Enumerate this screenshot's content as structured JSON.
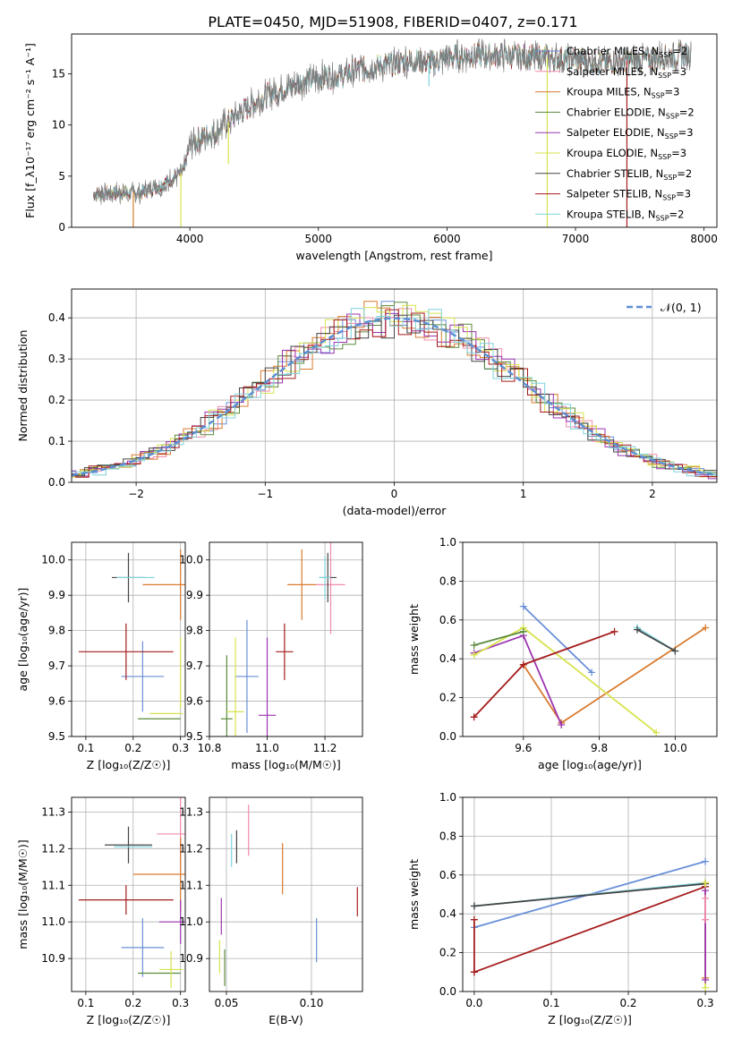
{
  "figure_title": "PLATE=0450, MJD=51908, FIBERID=0407, z=0.171",
  "models": [
    {
      "name": "Chabrier MILES",
      "nssp": "2",
      "color": "#6a8fd8"
    },
    {
      "name": "Salpeter MILES",
      "nssp": "3",
      "color": "#f08cad"
    },
    {
      "name": "Kroupa MILES",
      "nssp": "3",
      "color": "#d97b2f"
    },
    {
      "name": "Chabrier ELODIE",
      "nssp": "2",
      "color": "#5c8a3c"
    },
    {
      "name": "Salpeter ELODIE",
      "nssp": "3",
      "color": "#9b34b0"
    },
    {
      "name": "Kroupa ELODIE",
      "nssp": "3",
      "color": "#d7e34e"
    },
    {
      "name": "Chabrier STELIB",
      "nssp": "2",
      "color": "#444444"
    },
    {
      "name": "Salpeter STELIB",
      "nssp": "3",
      "color": "#a51c1c"
    },
    {
      "name": "Kroupa STELIB",
      "nssp": "2",
      "color": "#7fd3dc"
    }
  ],
  "chart_data": [
    {
      "id": "spectrum",
      "type": "line",
      "xlabel": "wavelength [Angstrom, rest frame]",
      "ylabel": "Flux [f_λ10⁻¹⁷ erg cm⁻² s⁻¹ A⁻¹]",
      "xlim": [
        3080,
        8100
      ],
      "ylim": [
        0,
        18.9
      ],
      "xticks": [
        4000,
        5000,
        6000,
        7000,
        8000
      ],
      "yticks": [
        0,
        5,
        10,
        15
      ],
      "grid": false,
      "legend": "right",
      "continuum": {
        "x": [
          3250,
          3400,
          3600,
          3800,
          3950,
          4000,
          4200,
          4400,
          4600,
          4800,
          5000,
          5200,
          5300,
          5500,
          5700,
          5900,
          6000,
          6200,
          6400,
          6600,
          6800,
          7000,
          7200,
          7400,
          7600,
          7800,
          7900
        ],
        "y": [
          3.2,
          3.4,
          3.3,
          4.3,
          5.4,
          8.2,
          9.4,
          11.3,
          12.9,
          13.9,
          14.6,
          14.9,
          15.4,
          15.8,
          16.3,
          16.1,
          16.6,
          16.8,
          16.8,
          16.7,
          16.6,
          16.4,
          16.1,
          16.3,
          16.5,
          16.8,
          16.9
        ]
      },
      "spikes": [
        {
          "x": 3560,
          "y_low": 0,
          "color": "#d97b2f"
        },
        {
          "x": 3930,
          "y_low": 0,
          "color": "#d7e34e"
        },
        {
          "x": 6780,
          "y_low": 0,
          "color": "#d7e34e"
        },
        {
          "x": 7400,
          "y_low": 0,
          "color": "#a51c1c"
        },
        {
          "x": 5860,
          "y_low": 13.8,
          "color": "#7fd3dc"
        },
        {
          "x": 4300,
          "y_low": 6.2,
          "color": "#d7e34e"
        }
      ]
    },
    {
      "id": "residuals",
      "type": "histogram",
      "xlabel": "(data-model)/error",
      "ylabel": "Normed distribution",
      "xlim": [
        -2.5,
        2.5
      ],
      "ylim": [
        0,
        0.47
      ],
      "xticks": [
        -2,
        -1,
        0,
        1,
        2
      ],
      "yticks": [
        0.0,
        0.1,
        0.2,
        0.3,
        0.4
      ],
      "grid": true,
      "legend": "top-right",
      "gaussian_label": "𝒩(0, 1)",
      "bin_width": 0.1
    },
    {
      "id": "age-vs-Z",
      "type": "errorbar",
      "xlabel": "Z [log₁₀(Z/Z☉)]",
      "ylabel": "age  [log₁₀(age/yr)]",
      "xlim": [
        0.07,
        0.31
      ],
      "ylim": [
        9.5,
        10.05
      ],
      "xticks": [
        0.1,
        0.2,
        0.3
      ],
      "yticks": [
        9.5,
        9.6,
        9.7,
        9.8,
        9.9,
        10.0
      ],
      "grid": true,
      "points": [
        {
          "model": 0,
          "x": 0.22,
          "y": 9.67,
          "xerr": 0.045,
          "yerr": 0.1
        },
        {
          "model": 2,
          "x": 0.3,
          "y": 9.93,
          "xerr": 0.08,
          "yerr": 0.1
        },
        {
          "model": 7,
          "x": 0.185,
          "y": 9.74,
          "xerr": 0.1,
          "yerr": 0.08
        },
        {
          "model": 3,
          "x": 0.255,
          "y": 9.55,
          "xerr": 0.045,
          "yerr": 0.0
        },
        {
          "model": 6,
          "x": 0.19,
          "y": 9.95,
          "xerr": 0.035,
          "yerr": 0.07
        },
        {
          "model": 8,
          "x": 0.205,
          "y": 9.95,
          "xerr": 0.04,
          "yerr": 0.0
        },
        {
          "model": 5,
          "x": 0.27,
          "y": 9.565,
          "xerr": 0.035,
          "yerr": 0.0
        },
        {
          "model": 5,
          "x": 0.3,
          "y": 9.68,
          "xerr": 0.0,
          "yerr": 0.1
        }
      ]
    },
    {
      "id": "age-vs-mass",
      "type": "errorbar",
      "xlabel": "mass [log₁₀(M/M☉)]",
      "ylabel": "",
      "xlim": [
        10.8,
        11.33
      ],
      "ylim": [
        9.5,
        10.05
      ],
      "xticks": [
        10.8,
        11.0,
        11.2
      ],
      "yticks": [
        9.5,
        9.6,
        9.7,
        9.8,
        9.9,
        10.0
      ],
      "grid": true,
      "points": [
        {
          "model": 0,
          "x": 10.93,
          "y": 9.67,
          "xerr": 0.04,
          "yerr": 0.16
        },
        {
          "model": 1,
          "x": 11.22,
          "y": 9.93,
          "xerr": 0.05,
          "yerr": 0.14
        },
        {
          "model": 2,
          "x": 11.12,
          "y": 9.93,
          "xerr": 0.05,
          "yerr": 0.1
        },
        {
          "model": 3,
          "x": 10.86,
          "y": 9.55,
          "xerr": 0.02,
          "yerr": 0.18
        },
        {
          "model": 4,
          "x": 11.0,
          "y": 9.56,
          "xerr": 0.03,
          "yerr": 0.22
        },
        {
          "model": 5,
          "x": 10.89,
          "y": 9.57,
          "xerr": 0.03,
          "yerr": 0.21
        },
        {
          "model": 6,
          "x": 11.21,
          "y": 9.95,
          "xerr": 0.03,
          "yerr": 0.07
        },
        {
          "model": 7,
          "x": 11.06,
          "y": 9.74,
          "xerr": 0.03,
          "yerr": 0.08
        },
        {
          "model": 8,
          "x": 11.2,
          "y": 9.95,
          "xerr": 0.02,
          "yerr": 0.06
        }
      ]
    },
    {
      "id": "mass-weight-vs-age",
      "type": "line",
      "xlabel": "age  [log₁₀(age/yr)]",
      "ylabel": "mass weight",
      "xlim": [
        9.44,
        10.11
      ],
      "ylim": [
        0,
        1
      ],
      "xticks": [
        9.6,
        9.8,
        10.0
      ],
      "yticks": [
        0.0,
        0.2,
        0.4,
        0.6,
        0.8,
        1.0
      ],
      "grid": true,
      "series": [
        {
          "model": 0,
          "x": [
            9.6,
            9.78
          ],
          "y": [
            0.67,
            0.33
          ]
        },
        {
          "model": 2,
          "x": [
            9.6,
            9.7,
            10.08
          ],
          "y": [
            0.37,
            0.07,
            0.56
          ]
        },
        {
          "model": 4,
          "x": [
            9.47,
            9.6,
            9.7
          ],
          "y": [
            0.43,
            0.52,
            0.06
          ]
        },
        {
          "model": 5,
          "x": [
            9.47,
            9.6,
            9.95
          ],
          "y": [
            0.42,
            0.56,
            0.02
          ]
        },
        {
          "model": 3,
          "x": [
            9.47,
            9.6
          ],
          "y": [
            0.47,
            0.54
          ]
        },
        {
          "model": 7,
          "x": [
            9.47,
            9.6,
            9.84
          ],
          "y": [
            0.1,
            0.37,
            0.54
          ]
        },
        {
          "model": 8,
          "x": [
            9.9,
            10.0
          ],
          "y": [
            0.56,
            0.44
          ]
        },
        {
          "model": 6,
          "x": [
            9.9,
            10.0
          ],
          "y": [
            0.55,
            0.44
          ]
        }
      ]
    },
    {
      "id": "mass-vs-Z",
      "type": "errorbar",
      "xlabel": "Z [log₁₀(Z/Z☉)]",
      "ylabel": "mass [log₁₀(M/M☉)]",
      "xlim": [
        0.07,
        0.31
      ],
      "ylim": [
        10.81,
        11.34
      ],
      "xticks": [
        0.1,
        0.2,
        0.3
      ],
      "yticks": [
        10.9,
        11.0,
        11.1,
        11.2,
        11.3
      ],
      "grid": true,
      "points": [
        {
          "model": 0,
          "x": 0.22,
          "y": 10.93,
          "xerr": 0.045,
          "yerr": 0.08
        },
        {
          "model": 1,
          "x": 0.3,
          "y": 11.24,
          "xerr": 0.05,
          "yerr": 0.1
        },
        {
          "model": 2,
          "x": 0.3,
          "y": 11.13,
          "xerr": 0.1,
          "yerr": 0.1
        },
        {
          "model": 3,
          "x": 0.255,
          "y": 10.86,
          "xerr": 0.045,
          "yerr": 0.0
        },
        {
          "model": 4,
          "x": 0.3,
          "y": 11.0,
          "xerr": 0.045,
          "yerr": 0.06
        },
        {
          "model": 5,
          "x": 0.28,
          "y": 10.87,
          "xerr": 0.025,
          "yerr": 0.05
        },
        {
          "model": 6,
          "x": 0.19,
          "y": 11.21,
          "xerr": 0.05,
          "yerr": 0.05
        },
        {
          "model": 7,
          "x": 0.185,
          "y": 11.06,
          "xerr": 0.1,
          "yerr": 0.04
        },
        {
          "model": 8,
          "x": 0.2,
          "y": 11.205,
          "xerr": 0.04,
          "yerr": 0.0
        }
      ]
    },
    {
      "id": "mass-vs-ebv",
      "type": "errorbar",
      "xlabel": "E(B-V)",
      "ylabel": "",
      "xlim": [
        0.04,
        0.13
      ],
      "ylim": [
        10.81,
        11.34
      ],
      "xticks": [
        0.05,
        0.1
      ],
      "yticks": [
        10.9,
        11.0,
        11.1,
        11.2,
        11.3
      ],
      "grid": true,
      "points": [
        {
          "model": 0,
          "x": 0.103,
          "y": 10.95,
          "xerr": 0,
          "yerr": 0.06
        },
        {
          "model": 1,
          "x": 0.063,
          "y": 11.25,
          "xerr": 0,
          "yerr": 0.07
        },
        {
          "model": 2,
          "x": 0.083,
          "y": 11.145,
          "xerr": 0,
          "yerr": 0.07
        },
        {
          "model": 3,
          "x": 0.049,
          "y": 10.875,
          "xerr": 0,
          "yerr": 0.05
        },
        {
          "model": 4,
          "x": 0.047,
          "y": 11.015,
          "xerr": 0,
          "yerr": 0.05
        },
        {
          "model": 5,
          "x": 0.046,
          "y": 10.905,
          "xerr": 0,
          "yerr": 0.045
        },
        {
          "model": 6,
          "x": 0.056,
          "y": 11.205,
          "xerr": 0,
          "yerr": 0.045
        },
        {
          "model": 7,
          "x": 0.127,
          "y": 11.055,
          "xerr": 0,
          "yerr": 0.04
        },
        {
          "model": 8,
          "x": 0.053,
          "y": 11.195,
          "xerr": 0,
          "yerr": 0.045
        }
      ]
    },
    {
      "id": "mass-weight-vs-Z",
      "type": "line",
      "xlabel": "Z [log₁₀(Z/Z☉)]",
      "ylabel": "mass weight",
      "xlim": [
        -0.015,
        0.315
      ],
      "ylim": [
        0,
        1
      ],
      "xticks": [
        0.0,
        0.1,
        0.2,
        0.3
      ],
      "yticks": [
        0.0,
        0.2,
        0.4,
        0.6,
        0.8,
        1.0
      ],
      "grid": true,
      "series": [
        {
          "model": 0,
          "x": [
            0.0,
            0.3
          ],
          "y": [
            0.33,
            0.67
          ]
        },
        {
          "model": 8,
          "x": [
            0.0,
            0.3
          ],
          "y": [
            0.44,
            0.56
          ]
        },
        {
          "model": 6,
          "x": [
            0.0,
            0.3
          ],
          "y": [
            0.44,
            0.555
          ]
        },
        {
          "model": 7,
          "x": [
            0.0,
            0.3
          ],
          "y": [
            0.1,
            0.54
          ]
        },
        {
          "model": 7,
          "x": [
            0.0,
            0.0
          ],
          "y": [
            0.1,
            0.37
          ]
        },
        {
          "model": 2,
          "x": [
            0.3,
            0.3
          ],
          "y": [
            0.07,
            0.56
          ]
        },
        {
          "model": 5,
          "x": [
            0.3,
            0.3
          ],
          "y": [
            0.02,
            0.56
          ]
        },
        {
          "model": 4,
          "x": [
            0.3,
            0.3
          ],
          "y": [
            0.06,
            0.52
          ]
        },
        {
          "model": 1,
          "x": [
            0.3,
            0.3
          ],
          "y": [
            0.37,
            0.48
          ]
        }
      ]
    }
  ]
}
